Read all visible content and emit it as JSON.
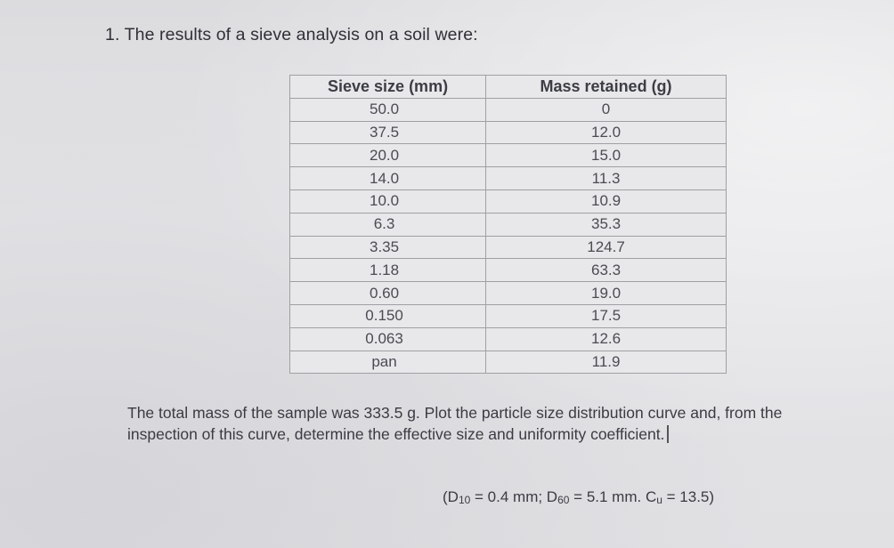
{
  "question": "1. The results of a sieve analysis on a soil were:",
  "table": {
    "headers": [
      "Sieve size (mm)",
      "Mass retained (g)"
    ],
    "rows": [
      {
        "size": "50.0",
        "mass": "0"
      },
      {
        "size": "37.5",
        "mass": "12.0"
      },
      {
        "size": "20.0",
        "mass": "15.0"
      },
      {
        "size": "14.0",
        "mass": "11.3"
      },
      {
        "size": "10.0",
        "mass": "10.9"
      },
      {
        "size": "6.3",
        "mass": "35.3"
      },
      {
        "size": "3.35",
        "mass": "124.7"
      },
      {
        "size": "1.18",
        "mass": "63.3"
      },
      {
        "size": "0.60",
        "mass": "19.0"
      },
      {
        "size": "0.150",
        "mass": "17.5"
      },
      {
        "size": "0.063",
        "mass": "12.6"
      },
      {
        "size": "pan",
        "mass": "11.9"
      }
    ]
  },
  "paragraph": "The total mass of the sample was 333.5 g. Plot the particle size distribution curve and, from the inspection of this curve, determine the effective size and uniformity coefficient.",
  "answer": {
    "open": "(D",
    "d10_sub": "10",
    "d10_value": " = 0.4 mm; D",
    "d60_sub": "60",
    "d60_value": " = 5.1 mm. C",
    "cu_sub": "u",
    "cu_value": " = 13.5)"
  }
}
